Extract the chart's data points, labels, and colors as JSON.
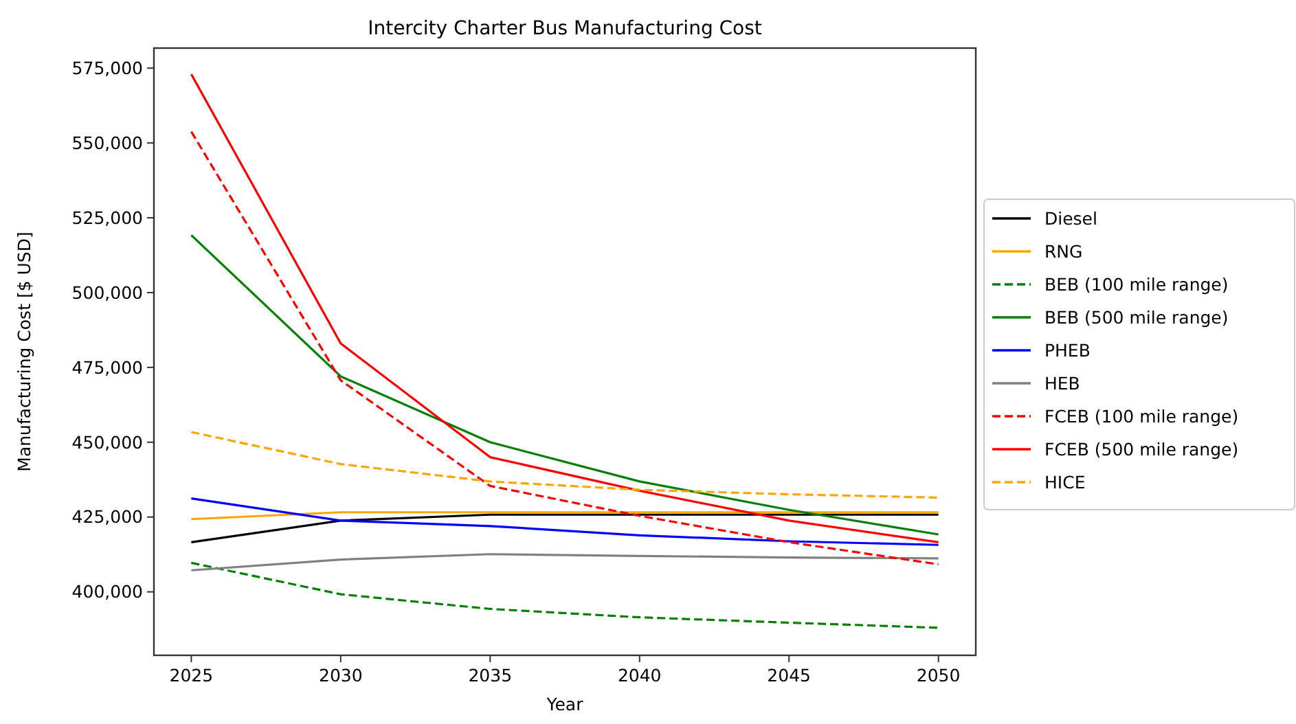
{
  "chart_data": {
    "type": "line",
    "title": "Intercity Charter Bus Manufacturing Cost",
    "xlabel": "Year",
    "ylabel": "Manufacturing Cost [$ USD]",
    "x": [
      2025,
      2030,
      2035,
      2040,
      2045,
      2050
    ],
    "xlim": [
      2023.75,
      2051.25
    ],
    "xticks": [
      2025,
      2030,
      2035,
      2040,
      2045,
      2050
    ],
    "ylim": [
      378800,
      581700
    ],
    "yticks": [
      {
        "value": 400000,
        "label": "400,000"
      },
      {
        "value": 425000,
        "label": "425,000"
      },
      {
        "value": 450000,
        "label": "450,000"
      },
      {
        "value": 475000,
        "label": "475,000"
      },
      {
        "value": 500000,
        "label": "500,000"
      },
      {
        "value": 525000,
        "label": "525,000"
      },
      {
        "value": 550000,
        "label": "550,000"
      },
      {
        "value": 575000,
        "label": "575,000"
      }
    ],
    "grid": false,
    "legend": "right",
    "marker": "none",
    "series": [
      {
        "name": "Diesel",
        "color": "#000000",
        "line_style": "solid",
        "values": [
          416600,
          423800,
          425800,
          425800,
          425800,
          425800
        ]
      },
      {
        "name": "RNG",
        "color": "#ffa500",
        "line_style": "solid",
        "values": [
          424300,
          426600,
          426600,
          426600,
          426600,
          426600
        ]
      },
      {
        "name": "BEB (100 mile range)",
        "color": "#008000",
        "line_style": "dashed",
        "values": [
          409700,
          399200,
          394300,
          391500,
          389700,
          388000
        ]
      },
      {
        "name": "BEB (500 mile range)",
        "color": "#008000",
        "line_style": "solid",
        "values": [
          519200,
          472000,
          450000,
          436900,
          427400,
          419200
        ]
      },
      {
        "name": "PHEB",
        "color": "#0000ff",
        "line_style": "solid",
        "values": [
          431200,
          423800,
          422000,
          418900,
          416900,
          415700
        ]
      },
      {
        "name": "HEB",
        "color": "#808080",
        "line_style": "solid",
        "values": [
          407200,
          410800,
          412600,
          412000,
          411500,
          411200
        ]
      },
      {
        "name": "FCEB (100 mile range)",
        "color": "#ff0000",
        "line_style": "dashed",
        "values": [
          553800,
          470700,
          435400,
          425400,
          416600,
          409200
        ]
      },
      {
        "name": "FCEB (500 mile range)",
        "color": "#ff0000",
        "line_style": "solid",
        "values": [
          573000,
          483000,
          445000,
          433800,
          423800,
          416600
        ]
      },
      {
        "name": "HICE",
        "color": "#ffa500",
        "line_style": "dashed",
        "values": [
          453400,
          442700,
          436900,
          434100,
          432600,
          431500
        ]
      }
    ]
  }
}
